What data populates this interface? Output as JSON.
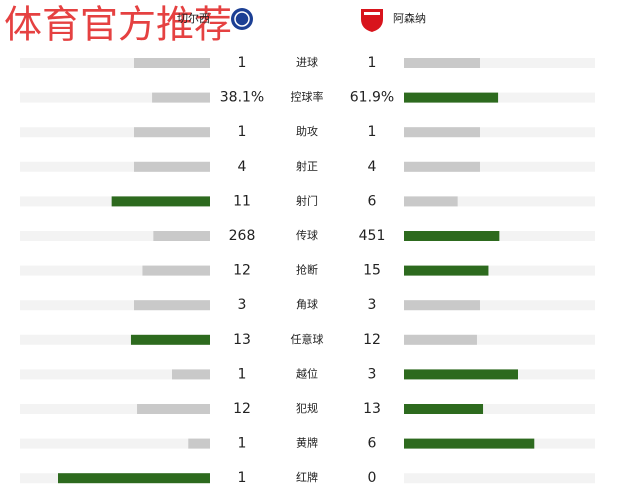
{
  "watermark": "体育官方推荐",
  "home_team": "切尔西",
  "away_team": "阿森纳",
  "rows": [
    {
      "label": "进球",
      "home": 1,
      "away": 1
    },
    {
      "label": "控球率",
      "home": 38.1,
      "away": 61.9,
      "home_label": "38.1%",
      "away_label": "61.9%"
    },
    {
      "label": "助攻",
      "home": 1,
      "away": 1
    },
    {
      "label": "射正",
      "home": 4,
      "away": 4
    },
    {
      "label": "射门",
      "home": 11,
      "away": 6
    },
    {
      "label": "传球",
      "home": 268,
      "away": 451
    },
    {
      "label": "抢断",
      "home": 12,
      "away": 15
    },
    {
      "label": "角球",
      "home": 3,
      "away": 3
    },
    {
      "label": "任意球",
      "home": 13,
      "away": 12
    },
    {
      "label": "越位",
      "home": 1,
      "away": 3
    },
    {
      "label": "犯规",
      "home": 12,
      "away": 13
    },
    {
      "label": "黄牌",
      "home": 1,
      "away": 6
    },
    {
      "label": "红牌",
      "home": 1,
      "away": 0
    }
  ]
}
